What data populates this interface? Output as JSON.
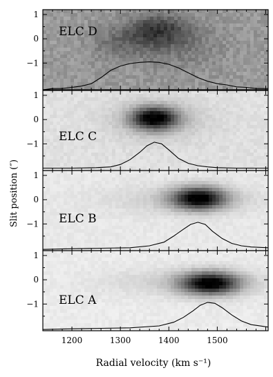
{
  "chart_data": {
    "type": "heatmap",
    "xlabel": "Radial velocity (km s⁻¹)",
    "ylabel": "Slit position (″)",
    "x_ticks": [
      {
        "value": 1200,
        "label": "1200"
      },
      {
        "value": 1300,
        "label": "1300"
      },
      {
        "value": 1400,
        "label": "1400"
      },
      {
        "value": 1500,
        "label": "1500"
      }
    ],
    "xlim": [
      1140,
      1605
    ],
    "ylim": [
      -2.1,
      1.2
    ],
    "y_ticks": [
      {
        "value": 1,
        "label": "1"
      },
      {
        "value": 0,
        "label": "0"
      },
      {
        "value": -1,
        "label": "−1"
      }
    ],
    "panels": [
      {
        "label": "ELC D",
        "background": "#9a9a9a",
        "noise": 0.55,
        "emission": [
          {
            "x": 1377,
            "y": 0.35,
            "sx": 45,
            "sy": 0.45,
            "amp": 0.55
          },
          {
            "x": 1300,
            "y": -0.2,
            "sx": 45,
            "sy": 0.5,
            "amp": 0.25
          },
          {
            "x": 1420,
            "y": -0.3,
            "sx": 60,
            "sy": 0.7,
            "amp": 0.2
          }
        ],
        "profile": {
          "x": [
            1140,
            1160,
            1180,
            1200,
            1220,
            1240,
            1260,
            1280,
            1300,
            1320,
            1340,
            1360,
            1380,
            1400,
            1420,
            1440,
            1460,
            1480,
            1500,
            1520,
            1540,
            1560,
            1580,
            1605
          ],
          "y": [
            -2.1,
            -2.05,
            -2.05,
            -2.0,
            -1.95,
            -1.85,
            -1.6,
            -1.3,
            -1.12,
            -1.02,
            -0.97,
            -0.95,
            -0.97,
            -1.05,
            -1.2,
            -1.4,
            -1.6,
            -1.75,
            -1.85,
            -1.9,
            -1.98,
            -2.0,
            -2.05,
            -2.05
          ]
        }
      },
      {
        "label": "ELC C",
        "background": "#e0e0e0",
        "noise": 0.25,
        "emission": [
          {
            "x": 1370,
            "y": 0.05,
            "sx": 33,
            "sy": 0.32,
            "amp": 1.0
          },
          {
            "x": 1380,
            "y": -0.05,
            "sx": 70,
            "sy": 0.6,
            "amp": 0.15
          }
        ],
        "profile": {
          "x": [
            1140,
            1200,
            1250,
            1280,
            1300,
            1320,
            1340,
            1355,
            1370,
            1385,
            1400,
            1420,
            1440,
            1460,
            1480,
            1500,
            1540,
            1605
          ],
          "y": [
            -2.0,
            -2.0,
            -1.98,
            -1.95,
            -1.85,
            -1.65,
            -1.35,
            -1.08,
            -0.93,
            -1.0,
            -1.25,
            -1.6,
            -1.8,
            -1.9,
            -1.95,
            -1.98,
            -2.0,
            -2.0
          ]
        }
      },
      {
        "label": "ELC B",
        "background": "#e8e8e8",
        "noise": 0.2,
        "emission": [
          {
            "x": 1462,
            "y": 0.05,
            "sx": 38,
            "sy": 0.32,
            "amp": 1.0
          },
          {
            "x": 1430,
            "y": 0.0,
            "sx": 110,
            "sy": 0.4,
            "amp": 0.12
          }
        ],
        "profile": {
          "x": [
            1140,
            1200,
            1260,
            1320,
            1360,
            1390,
            1410,
            1430,
            1445,
            1460,
            1475,
            1490,
            1510,
            1530,
            1550,
            1570,
            1605
          ],
          "y": [
            -2.05,
            -2.02,
            -2.0,
            -1.98,
            -1.9,
            -1.75,
            -1.5,
            -1.22,
            -1.02,
            -0.93,
            -1.02,
            -1.3,
            -1.6,
            -1.8,
            -1.9,
            -1.95,
            -1.98
          ]
        }
      },
      {
        "label": "ELC A",
        "background": "#ebebeb",
        "noise": 0.2,
        "emission": [
          {
            "x": 1485,
            "y": -0.15,
            "sx": 42,
            "sy": 0.32,
            "amp": 1.0
          },
          {
            "x": 1440,
            "y": -0.1,
            "sx": 120,
            "sy": 0.4,
            "amp": 0.12
          }
        ],
        "profile": {
          "x": [
            1140,
            1200,
            1260,
            1320,
            1380,
            1410,
            1430,
            1450,
            1465,
            1480,
            1495,
            1510,
            1530,
            1550,
            1570,
            1605
          ],
          "y": [
            -2.05,
            -2.02,
            -2.0,
            -1.98,
            -1.9,
            -1.75,
            -1.55,
            -1.28,
            -1.05,
            -0.93,
            -0.97,
            -1.15,
            -1.45,
            -1.7,
            -1.85,
            -1.95
          ]
        }
      }
    ]
  }
}
